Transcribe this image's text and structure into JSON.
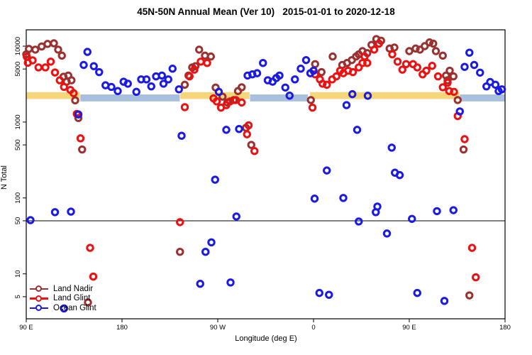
{
  "title": "45N-50N Annual Mean (Ver 10)   2015-01-01 to 2020-12-18",
  "chart_data": {
    "type": "scatter",
    "title": "45N-50N Annual Mean (Ver 10)   2015-01-01 to 2020-12-18",
    "xlabel": "Longitude (deg E)",
    "ylabel": "N Total",
    "y_scale": "log",
    "xlim": [
      90,
      540
    ],
    "ylim": [
      2.6,
      16400
    ],
    "grid": false,
    "x_ticks": [
      {
        "lon": 90,
        "label": "90 E"
      },
      {
        "lon": 180,
        "label": "180"
      },
      {
        "lon": 270,
        "label": "90 W"
      },
      {
        "lon": 360,
        "label": "0"
      },
      {
        "lon": 450,
        "label": "90 E"
      },
      {
        "lon": 540,
        "label": "180"
      }
    ],
    "y_ticks": [
      10000,
      5000,
      1000,
      500,
      100,
      50,
      10,
      5
    ],
    "reference_line_y": 50,
    "bands": [
      {
        "name": "land-band",
        "color": "#F6D67A",
        "n_range": [
          2010,
          2480
        ],
        "segments": [
          [
            90,
            140.3
          ],
          [
            234.8,
            299.8
          ],
          [
            356.8,
            497.0
          ]
        ]
      },
      {
        "name": "ocean-band",
        "color": "#A9BFDE",
        "n_range": [
          1870,
          2310
        ],
        "segments": [
          [
            140.8,
            234.3
          ],
          [
            300.3,
            354.6
          ],
          [
            497.5,
            540
          ]
        ]
      }
    ],
    "legend_position": "bottom-left",
    "series": [
      {
        "name": "Land Nadir",
        "color": "#9B3030",
        "points": [
          [
            90,
            7800
          ],
          [
            92.5,
            9200
          ],
          [
            98.5,
            9000
          ],
          [
            104.5,
            9900
          ],
          [
            110,
            10700
          ],
          [
            116,
            10900
          ],
          [
            120,
            9000
          ],
          [
            123.5,
            7500
          ],
          [
            125,
            3950
          ],
          [
            128,
            3400
          ],
          [
            129.5,
            4100
          ],
          [
            132.5,
            3550
          ],
          [
            136,
            1930
          ],
          [
            139,
            1130
          ],
          [
            142.5,
            435
          ],
          [
            148,
            4.2
          ],
          [
            234.5,
            19.5
          ],
          [
            239,
            3100
          ],
          [
            242.5,
            4100
          ],
          [
            246,
            5250
          ],
          [
            249,
            5450
          ],
          [
            252.5,
            9000
          ],
          [
            258,
            7500
          ],
          [
            263.5,
            7300
          ],
          [
            268,
            2850
          ],
          [
            274.5,
            2160
          ],
          [
            279,
            1810
          ],
          [
            285,
            1950
          ],
          [
            289,
            2560
          ],
          [
            292.5,
            2870
          ],
          [
            296.5,
            840
          ],
          [
            301.5,
            500
          ],
          [
            357.5,
            1950
          ],
          [
            361.5,
            5800
          ],
          [
            367.5,
            4550
          ],
          [
            378,
            7300
          ],
          [
            387,
            5650
          ],
          [
            391.5,
            6000
          ],
          [
            396,
            6550
          ],
          [
            400,
            7300
          ],
          [
            402.5,
            7800
          ],
          [
            406,
            8600
          ],
          [
            410.5,
            8100
          ],
          [
            414.5,
            10400
          ],
          [
            419,
            12400
          ],
          [
            423.5,
            11800
          ],
          [
            431.5,
            9300
          ],
          [
            436,
            9600
          ],
          [
            450,
            8600
          ],
          [
            456,
            9300
          ],
          [
            460,
            9000
          ],
          [
            464.5,
            10000
          ],
          [
            469,
            11200
          ],
          [
            472.5,
            10800
          ],
          [
            475,
            8600
          ],
          [
            481.5,
            7500
          ],
          [
            484.5,
            4100
          ],
          [
            486,
            3550
          ],
          [
            488,
            4750
          ],
          [
            491.5,
            4000
          ],
          [
            495.5,
            1950
          ],
          [
            501,
            435
          ],
          [
            506.5,
            5.2
          ]
        ]
      },
      {
        "name": "Land Glint",
        "color": "#EE1010",
        "points": [
          [
            90.5,
            7250
          ],
          [
            91.5,
            6050
          ],
          [
            96,
            6500
          ],
          [
            101.5,
            5250
          ],
          [
            108,
            5250
          ],
          [
            113,
            6250
          ],
          [
            117,
            4500
          ],
          [
            121.5,
            3550
          ],
          [
            125.5,
            2900
          ],
          [
            131.5,
            2650
          ],
          [
            134.5,
            2400
          ],
          [
            137.5,
            1280
          ],
          [
            141,
            610
          ],
          [
            150,
            22
          ],
          [
            153,
            9.2
          ],
          [
            234.5,
            48
          ],
          [
            239,
            1570
          ],
          [
            243.5,
            4000
          ],
          [
            248,
            4900
          ],
          [
            254,
            6250
          ],
          [
            260,
            6000
          ],
          [
            266,
            2050
          ],
          [
            269,
            1870
          ],
          [
            273,
            1550
          ],
          [
            278,
            1670
          ],
          [
            281.5,
            1870
          ],
          [
            287,
            1950
          ],
          [
            292.5,
            1810
          ],
          [
            297.5,
            690
          ],
          [
            299,
            905
          ],
          [
            304.5,
            415
          ],
          [
            359,
            1550
          ],
          [
            361.5,
            4250
          ],
          [
            366,
            3650
          ],
          [
            368.5,
            3200
          ],
          [
            372.5,
            3100
          ],
          [
            377.5,
            3650
          ],
          [
            381.5,
            4000
          ],
          [
            385,
            4750
          ],
          [
            388,
            4400
          ],
          [
            392.5,
            4750
          ],
          [
            397,
            4550
          ],
          [
            402.5,
            5250
          ],
          [
            406,
            6000
          ],
          [
            408,
            7300
          ],
          [
            410.5,
            6000
          ],
          [
            417,
            9000
          ],
          [
            421.5,
            10800
          ],
          [
            434,
            7800
          ],
          [
            439,
            6250
          ],
          [
            443.5,
            4900
          ],
          [
            447,
            5800
          ],
          [
            453.5,
            5800
          ],
          [
            457.5,
            5250
          ],
          [
            462.5,
            4250
          ],
          [
            466,
            4750
          ],
          [
            471.5,
            5500
          ],
          [
            477,
            4000
          ],
          [
            481.5,
            2870
          ],
          [
            486,
            3300
          ],
          [
            487.5,
            2560
          ],
          [
            492,
            2500
          ],
          [
            495.5,
            1200
          ],
          [
            502,
            595
          ],
          [
            509,
            22
          ],
          [
            512.5,
            9
          ]
        ]
      },
      {
        "name": "Ocean Glint",
        "color": "#1A1AE8",
        "points": [
          [
            94,
            51
          ],
          [
            117,
            65
          ],
          [
            125.5,
            3.5
          ],
          [
            132,
            66
          ],
          [
            139,
            1260
          ],
          [
            144,
            5650
          ],
          [
            147.5,
            8400
          ],
          [
            153.5,
            5450
          ],
          [
            158.5,
            4550
          ],
          [
            164.5,
            3050
          ],
          [
            170,
            2900
          ],
          [
            176,
            2560
          ],
          [
            181.5,
            3400
          ],
          [
            185.5,
            3200
          ],
          [
            193.5,
            2500
          ],
          [
            198,
            3650
          ],
          [
            203,
            3650
          ],
          [
            207.5,
            2950
          ],
          [
            212,
            4000
          ],
          [
            217.5,
            4100
          ],
          [
            219,
            3200
          ],
          [
            223.5,
            3650
          ],
          [
            227.5,
            5050
          ],
          [
            233.5,
            2700
          ],
          [
            236,
            660
          ],
          [
            253.5,
            7.4
          ],
          [
            258.5,
            19.5
          ],
          [
            264,
            26
          ],
          [
            267.5,
            174
          ],
          [
            271,
            2500
          ],
          [
            278,
            790
          ],
          [
            282,
            7.7
          ],
          [
            287.5,
            57
          ],
          [
            290,
            810
          ],
          [
            298,
            4100
          ],
          [
            302.5,
            4250
          ],
          [
            307,
            4400
          ],
          [
            312.5,
            6000
          ],
          [
            317,
            3550
          ],
          [
            321.5,
            3400
          ],
          [
            325,
            3800
          ],
          [
            328,
            4100
          ],
          [
            333.5,
            2850
          ],
          [
            337.5,
            2230
          ],
          [
            342.5,
            3650
          ],
          [
            348,
            5050
          ],
          [
            353,
            6550
          ],
          [
            357,
            4400
          ],
          [
            360,
            4750
          ],
          [
            361,
            98
          ],
          [
            365.5,
            5.6
          ],
          [
            372.5,
            230
          ],
          [
            374.5,
            5.3
          ],
          [
            388,
            100
          ],
          [
            391,
            1670
          ],
          [
            396.5,
            2330
          ],
          [
            401,
            790
          ],
          [
            402.5,
            49
          ],
          [
            411,
            2220
          ],
          [
            418.5,
            65
          ],
          [
            420,
            77
          ],
          [
            429,
            34
          ],
          [
            433.5,
            460
          ],
          [
            436.5,
            215
          ],
          [
            441,
            200
          ],
          [
            452.5,
            53
          ],
          [
            457.5,
            5.6
          ],
          [
            476,
            67
          ],
          [
            483,
            4.4
          ],
          [
            491.5,
            69
          ],
          [
            497.5,
            1380
          ],
          [
            502,
            5330
          ],
          [
            506.5,
            8200
          ],
          [
            511,
            5650
          ],
          [
            516.5,
            4480
          ],
          [
            522.5,
            2950
          ],
          [
            526,
            3370
          ],
          [
            531,
            3100
          ],
          [
            534,
            2560
          ],
          [
            537,
            2700
          ]
        ]
      }
    ]
  }
}
